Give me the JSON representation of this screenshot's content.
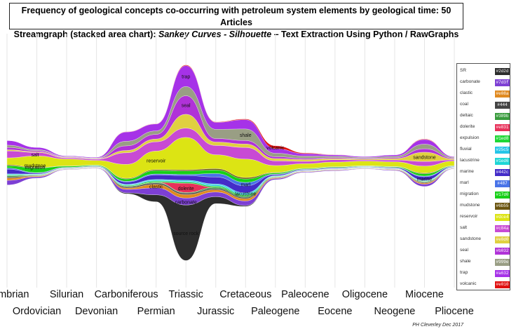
{
  "title_line1": "Frequency of geological concepts co-occurring with petroleum system elements by geological time: 50 Articles",
  "title_line2_a": "Streamgraph (stacked area chart): ",
  "title_line2_b": "Sankey Curves - Silhouette",
  "title_line2_c": " – Text Extraction Using Python / RawGraphs",
  "credit": "PH Cleverley Dec 2017",
  "chart_data": {
    "type": "area",
    "layout": "silhouette streamgraph",
    "x_categories": [
      "Cambrian",
      "Ordovician",
      "Silurian",
      "Devonian",
      "Carboniferous",
      "Permian",
      "Triassic",
      "Jurassic",
      "Cretaceous",
      "Paleogene",
      "Paleocene",
      "Eocene",
      "Oligocene",
      "Neogene",
      "Miocene",
      "Pliocene"
    ],
    "x_label_row": [
      1,
      2,
      1,
      2,
      1,
      2,
      1,
      2,
      1,
      2,
      1,
      2,
      1,
      2,
      1,
      2
    ],
    "series": [
      {
        "name": "SR",
        "color": "#2d2d2d",
        "values": [
          0,
          0,
          0,
          0,
          0.4,
          3,
          24,
          3,
          0.4,
          0,
          0,
          0,
          0,
          0,
          0,
          0
        ]
      },
      {
        "name": "carbonate",
        "color": "#7d3fd4",
        "values": [
          2,
          0.6,
          0.2,
          0.2,
          1.5,
          3,
          3,
          2,
          2,
          0.5,
          0.3,
          0.3,
          0.2,
          0.3,
          1,
          0.2
        ]
      },
      {
        "name": "clastic",
        "color": "#e08a20",
        "values": [
          1,
          0.3,
          0.1,
          0.1,
          0.6,
          1.5,
          1.5,
          1,
          1,
          0.3,
          0.2,
          0.2,
          0.1,
          0.2,
          0.5,
          0.1
        ]
      },
      {
        "name": "coal",
        "color": "#444444",
        "values": [
          0.5,
          0.2,
          0.1,
          0.1,
          0.5,
          0.6,
          0.6,
          0.5,
          0.5,
          0.2,
          0.1,
          0.1,
          0.1,
          0.1,
          0.3,
          0.1
        ]
      },
      {
        "name": "deltaic",
        "color": "#389b3c",
        "values": [
          0.5,
          0.2,
          0.1,
          0.1,
          0.3,
          0.3,
          0.3,
          0.6,
          0.6,
          0.2,
          0.1,
          0.1,
          0.1,
          0.1,
          0.3,
          0.1
        ]
      },
      {
        "name": "dolerite",
        "color": "#e8315a",
        "values": [
          0,
          0,
          0,
          0,
          0,
          0,
          4,
          0,
          0,
          0,
          0,
          0,
          0,
          0,
          0,
          0
        ]
      },
      {
        "name": "expulsion",
        "color": "#1ed835",
        "values": [
          0.3,
          0.2,
          0.1,
          0.1,
          0.3,
          0.5,
          0.5,
          0.5,
          0.5,
          0.2,
          0.1,
          0.1,
          0.1,
          0.1,
          0.2,
          0.1
        ]
      },
      {
        "name": "fluvial",
        "color": "#25c5e8",
        "values": [
          0.3,
          0.2,
          0.1,
          0.1,
          0.3,
          0.4,
          0.4,
          0.5,
          0.5,
          0.2,
          0.1,
          0.1,
          0.1,
          0.1,
          0.2,
          0.1
        ]
      },
      {
        "name": "lacustrine",
        "color": "#1ed6d6",
        "values": [
          0.2,
          0.1,
          0.05,
          0.05,
          0.2,
          0.3,
          0.4,
          0.4,
          0.4,
          0.1,
          0.1,
          0.1,
          0.1,
          0.1,
          0.2,
          0.1
        ]
      },
      {
        "name": "marine",
        "color": "#442cc8",
        "values": [
          2,
          0.4,
          0.2,
          0.2,
          1,
          2,
          2,
          3,
          3,
          0.5,
          0.3,
          0.3,
          0.2,
          0.3,
          1.5,
          0.2
        ]
      },
      {
        "name": "marl",
        "color": "#4873e8",
        "values": [
          0.5,
          0.2,
          0.1,
          0.1,
          0.3,
          0.4,
          0.5,
          1.5,
          1.5,
          0.2,
          0.1,
          0.1,
          0.1,
          0.1,
          0.3,
          0.1
        ]
      },
      {
        "name": "migration",
        "color": "#17d017",
        "values": [
          1,
          2,
          0.5,
          0.3,
          1,
          1.5,
          1.5,
          1.5,
          1.5,
          0.5,
          0.3,
          0.3,
          0.2,
          0.3,
          1,
          0.2
        ]
      },
      {
        "name": "mudstone",
        "color": "#6b5510",
        "values": [
          0.4,
          0.2,
          0.1,
          0.1,
          0.3,
          0.4,
          0.5,
          0.6,
          0.6,
          0.2,
          0.1,
          0.1,
          0.1,
          0.1,
          0.3,
          0.1
        ]
      },
      {
        "name": "reservoir",
        "color": "#dce414",
        "values": [
          3,
          5,
          3,
          2,
          6,
          8,
          14,
          6,
          8,
          3,
          2,
          2,
          2,
          2,
          3,
          2
        ]
      },
      {
        "name": "salt",
        "color": "#c84ad4",
        "values": [
          3,
          1.5,
          0.5,
          0.5,
          5,
          4,
          4,
          4,
          5,
          2,
          1,
          1,
          0.5,
          0.8,
          2,
          0.5
        ]
      },
      {
        "name": "sandstone",
        "color": "#e0d040",
        "values": [
          0.5,
          0.3,
          0.2,
          0.2,
          1,
          1.2,
          6,
          1.5,
          1.5,
          1,
          0.8,
          0.5,
          0.4,
          0.6,
          4,
          0.4
        ]
      },
      {
        "name": "seal",
        "color": "#b032d8",
        "values": [
          1,
          0.5,
          0.2,
          0.2,
          2,
          2,
          8,
          1.5,
          1.5,
          0.8,
          0.5,
          0.4,
          0.3,
          0.4,
          1.5,
          0.3
        ]
      },
      {
        "name": "shale",
        "color": "#999e84",
        "values": [
          1,
          0.4,
          0.2,
          0.2,
          2,
          1.5,
          4,
          4,
          5,
          1.5,
          1,
          0.6,
          0.4,
          0.6,
          2,
          0.4
        ]
      },
      {
        "name": "trap",
        "color": "#a632e8",
        "values": [
          2,
          1,
          0.3,
          0.3,
          4,
          3,
          9,
          3,
          4,
          2,
          1,
          0.6,
          0.4,
          0.6,
          2,
          0.3
        ]
      },
      {
        "name": "volcanic",
        "color": "#e01010",
        "values": [
          0,
          0,
          0,
          0,
          0.1,
          0.1,
          0.3,
          0.2,
          0.3,
          1.2,
          0.3,
          0.1,
          0,
          0,
          0.2,
          0
        ]
      }
    ],
    "annotations": [
      "salt",
      "migration",
      "mudstone",
      "reservoir",
      "trap",
      "seal",
      "shale",
      "sandstone",
      "source rock",
      "volcanic",
      "dolerite",
      "marl",
      "marine",
      "lacustrine",
      "carbonate",
      "clastic"
    ],
    "grid": "vertical lines at each period",
    "legend_position": "right"
  },
  "legend": [
    {
      "name": "SR",
      "hex": "#2d2d",
      "color": "#2d2d2d"
    },
    {
      "name": "carbonate",
      "hex": "#7d3f",
      "color": "#7d3fd4"
    },
    {
      "name": "clastic",
      "hex": "#e08a",
      "color": "#e08a20"
    },
    {
      "name": "coal",
      "hex": "#444",
      "color": "#444444"
    },
    {
      "name": "deltaic",
      "hex": "#389b",
      "color": "#389b3c"
    },
    {
      "name": "dolerite",
      "hex": "#e831",
      "color": "#e8315a"
    },
    {
      "name": "expulsion",
      "hex": "#1ed8",
      "color": "#1ed835"
    },
    {
      "name": "fluvial",
      "hex": "#25c5",
      "color": "#25c5e8"
    },
    {
      "name": "lacustrine",
      "hex": "#1ed6",
      "color": "#1ed6d6"
    },
    {
      "name": "marine",
      "hex": "#442c",
      "color": "#442cc8"
    },
    {
      "name": "marl",
      "hex": "#487",
      "color": "#4873e8"
    },
    {
      "name": "migration",
      "hex": "#17d0",
      "color": "#17d017"
    },
    {
      "name": "mudstone",
      "hex": "#6b55",
      "color": "#6b5510"
    },
    {
      "name": "reservoir",
      "hex": "#dce4",
      "color": "#dce414"
    },
    {
      "name": "salt",
      "hex": "#c84a",
      "color": "#c84ad4"
    },
    {
      "name": "sandstone",
      "hex": "#e0d0",
      "color": "#e0d040"
    },
    {
      "name": "seal",
      "hex": "#b032",
      "color": "#b032d8"
    },
    {
      "name": "shale",
      "hex": "#999e",
      "color": "#999e84"
    },
    {
      "name": "trap",
      "hex": "#a632",
      "color": "#a632e8"
    },
    {
      "name": "volcanic",
      "hex": "#e010",
      "color": "#e01010"
    }
  ]
}
